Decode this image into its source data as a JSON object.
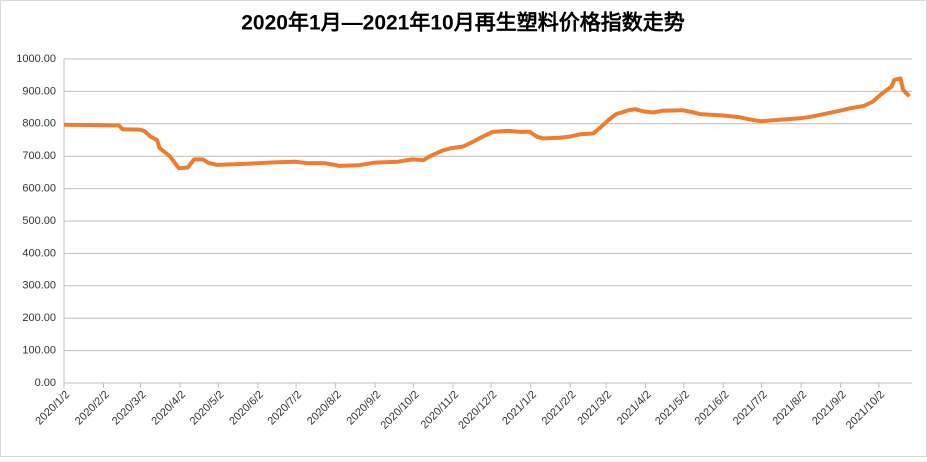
{
  "chart_data": {
    "type": "line",
    "title": "2020年1月—2021年10月再生塑料价格指数走势",
    "x": [
      "2020/1/2",
      "2020/2/14",
      "2020/2/17",
      "2020/3/1",
      "2020/3/5",
      "2020/3/10",
      "2020/3/15",
      "2020/3/17",
      "2020/3/25",
      "2020/4/1",
      "2020/4/8",
      "2020/4/13",
      "2020/4/20",
      "2020/4/24",
      "2020/5/1",
      "2020/5/15",
      "2020/6/1",
      "2020/6/15",
      "2020/7/1",
      "2020/7/10",
      "2020/7/25",
      "2020/8/1",
      "2020/8/5",
      "2020/8/20",
      "2020/9/1",
      "2020/9/20",
      "2020/10/1",
      "2020/10/10",
      "2020/10/15",
      "2020/10/25",
      "2020/11/1",
      "2020/11/10",
      "2020/11/18",
      "2020/11/25",
      "2020/12/3",
      "2020/12/15",
      "2020/12/25",
      "2021/1/1",
      "2021/1/7",
      "2021/1/12",
      "2021/1/25",
      "2021/2/1",
      "2021/2/10",
      "2021/2/20",
      "2021/2/26",
      "2021/3/5",
      "2021/3/10",
      "2021/3/20",
      "2021/3/25",
      "2021/4/1",
      "2021/4/8",
      "2021/4/15",
      "2021/5/1",
      "2021/5/10",
      "2021/5/15",
      "2021/6/1",
      "2021/6/15",
      "2021/6/25",
      "2021/7/1",
      "2021/7/15",
      "2021/8/1",
      "2021/8/10",
      "2021/8/20",
      "2021/9/1",
      "2021/9/10",
      "2021/9/20",
      "2021/9/27",
      "2021/10/5",
      "2021/10/12",
      "2021/10/14",
      "2021/10/19",
      "2021/10/21",
      "2021/10/26"
    ],
    "series": [
      {
        "name": "再生塑料价格指数",
        "color": "#ed7d31",
        "values": [
          797,
          795,
          783,
          782,
          778,
          760,
          750,
          725,
          700,
          663,
          665,
          690,
          690,
          680,
          673,
          675,
          678,
          681,
          683,
          679,
          678,
          673,
          670,
          672,
          680,
          683,
          690,
          688,
          700,
          718,
          725,
          730,
          745,
          760,
          775,
          778,
          775,
          776,
          760,
          755,
          757,
          760,
          768,
          770,
          790,
          815,
          830,
          842,
          845,
          838,
          835,
          840,
          842,
          835,
          830,
          826,
          820,
          812,
          808,
          812,
          817,
          822,
          830,
          840,
          848,
          855,
          868,
          895,
          915,
          935,
          940,
          905,
          885
        ]
      }
    ],
    "xlim": [
      "2020/1/2",
      "2021/10/28"
    ],
    "xticks": [
      "2020/1/2",
      "2020/2/2",
      "2020/3/2",
      "2020/4/2",
      "2020/5/2",
      "2020/6/2",
      "2020/7/2",
      "2020/8/2",
      "2020/9/2",
      "2020/10/2",
      "2020/11/2",
      "2020/12/2",
      "2021/1/2",
      "2021/2/2",
      "2021/3/2",
      "2021/4/2",
      "2021/5/2",
      "2021/6/2",
      "2021/7/2",
      "2021/8/2",
      "2021/9/2",
      "2021/10/2"
    ],
    "ylim": [
      0,
      1000
    ],
    "yticks": [
      {
        "value": 0,
        "label": "0.00"
      },
      {
        "value": 100,
        "label": "100.00"
      },
      {
        "value": 200,
        "label": "200.00"
      },
      {
        "value": 300,
        "label": "300.00"
      },
      {
        "value": 400,
        "label": "400.00"
      },
      {
        "value": 500,
        "label": "500.00"
      },
      {
        "value": 600,
        "label": "600.00"
      },
      {
        "value": 700,
        "label": "700.00"
      },
      {
        "value": 800,
        "label": "800.00"
      },
      {
        "value": 900,
        "label": "900.00"
      },
      {
        "value": 1000,
        "label": "1000.00"
      }
    ],
    "grid": true
  }
}
